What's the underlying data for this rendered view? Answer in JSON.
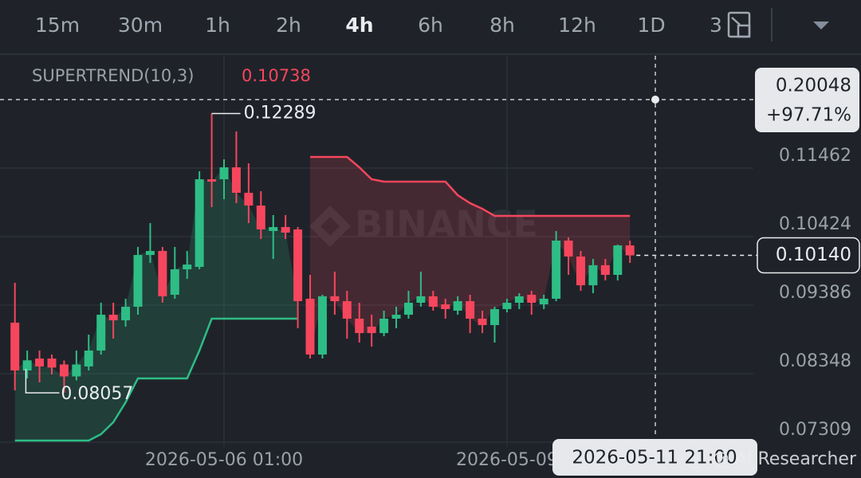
{
  "toolbar": {
    "intervals": [
      "15m",
      "30m",
      "1h",
      "2h",
      "4h",
      "6h",
      "8h",
      "12h",
      "1D",
      "3"
    ],
    "active_index": 4
  },
  "chart_data": {
    "type": "candlestick",
    "watermark": "BINANCE",
    "credit": "@ AI Researcher",
    "categories": [
      null,
      null,
      null,
      null,
      null,
      null,
      null,
      null,
      null,
      null,
      null,
      null,
      null,
      null,
      null,
      null,
      null,
      "2026-05-06 01:00",
      null,
      null,
      null,
      null,
      null,
      null,
      null,
      null,
      null,
      null,
      null,
      null,
      null,
      null,
      null,
      null,
      null,
      null,
      null,
      null,
      null,
      null,
      "2026-05-09",
      null,
      null,
      null,
      null,
      null,
      null,
      null,
      null,
      null,
      null
    ],
    "open": [
      0.0912,
      0.08396,
      0.08577,
      0.08577,
      0.08487,
      0.08306,
      0.08457,
      0.08698,
      0.09241,
      0.09156,
      0.09362,
      0.10146,
      0.10207,
      0.09543,
      0.09929,
      0.09965,
      0.11293,
      0.11293,
      0.11474,
      0.11088,
      0.10895,
      0.10509,
      0.10569,
      0.10533,
      0.09483,
      0.08638,
      0.0952,
      0.09446,
      0.09181,
      0.0906,
      0.08963,
      0.09181,
      0.09241,
      0.09422,
      0.0952,
      0.09398,
      0.09302,
      0.09446,
      0.09181,
      0.09084,
      0.09326,
      0.09422,
      0.09543,
      0.09398,
      0.09483,
      0.10364,
      0.10122,
      0.09687,
      0.09991,
      0.09845,
      0.10291
    ],
    "high": [
      0.09724,
      0.08698,
      0.08698,
      0.08638,
      0.08547,
      0.08698,
      0.08939,
      0.09422,
      0.09422,
      0.09483,
      0.10267,
      0.10629,
      0.10267,
      0.10267,
      0.10207,
      0.11414,
      0.12289,
      0.11595,
      0.12017,
      0.11535,
      0.11112,
      0.1075,
      0.1075,
      0.10569,
      0.09845,
      0.09543,
      0.09893,
      0.09603,
      0.09422,
      0.09241,
      0.09302,
      0.09362,
      0.09603,
      0.09893,
      0.09603,
      0.09483,
      0.0952,
      0.09543,
      0.09302,
      0.09362,
      0.09483,
      0.09567,
      0.09603,
      0.09543,
      0.10509,
      0.10412,
      0.10207,
      0.10086,
      0.10086,
      0.10303,
      0.10364
    ],
    "low": [
      0.08095,
      0.08276,
      0.08215,
      0.08336,
      0.08057,
      0.08245,
      0.08396,
      0.08638,
      0.08879,
      0.0906,
      0.09241,
      0.10026,
      0.09422,
      0.09483,
      0.09784,
      0.09929,
      0.10871,
      0.10991,
      0.10931,
      0.10629,
      0.10388,
      0.10086,
      0.10388,
      0.09036,
      0.08577,
      0.08577,
      0.09241,
      0.08879,
      0.08819,
      0.08758,
      0.08915,
      0.09036,
      0.09181,
      0.09362,
      0.09302,
      0.09181,
      0.09241,
      0.08963,
      0.08963,
      0.08819,
      0.09278,
      0.09326,
      0.09241,
      0.09326,
      0.09446,
      0.09845,
      0.09603,
      0.09567,
      0.0976,
      0.0976,
      0.10026
    ],
    "close": [
      0.08396,
      0.0855,
      0.08457,
      0.0844,
      0.08306,
      0.08487,
      0.08698,
      0.09241,
      0.09156,
      0.09362,
      0.10146,
      0.10207,
      0.0952,
      0.09929,
      0.10001,
      0.11293,
      0.11257,
      0.11474,
      0.11088,
      0.10895,
      0.10533,
      0.10569,
      0.10485,
      0.09446,
      0.08638,
      0.0952,
      0.09446,
      0.09181,
      0.08963,
      0.08963,
      0.09181,
      0.09241,
      0.09422,
      0.0952,
      0.09362,
      0.09326,
      0.09446,
      0.09181,
      0.09084,
      0.09326,
      0.09422,
      0.0952,
      0.09422,
      0.09483,
      0.10364,
      0.10122,
      0.09687,
      0.09991,
      0.09845,
      0.10291,
      0.1014
    ],
    "up_color": "#2ebd85",
    "down_color": "#f6465d",
    "supertrend": {
      "name": "SUPERTREND(10,3)",
      "up": [
        0.07334,
        0.07334,
        0.07334,
        0.07334,
        0.07334,
        0.07334,
        0.07334,
        0.07431,
        0.07612,
        0.07913,
        0.08276,
        0.08276,
        0.08276,
        0.08276,
        0.08276,
        0.08698,
        0.09181,
        0.09181,
        0.09181,
        0.09181,
        0.09181,
        0.09181,
        0.09181,
        0.09181,
        null,
        null,
        null,
        null,
        null,
        null,
        null,
        null,
        null,
        null,
        null,
        null,
        null,
        null,
        null,
        null,
        null,
        null,
        null,
        null,
        null,
        null,
        null,
        null,
        null,
        null,
        null
      ],
      "down": [
        null,
        null,
        null,
        null,
        null,
        null,
        null,
        null,
        null,
        null,
        null,
        null,
        null,
        null,
        null,
        null,
        null,
        null,
        null,
        null,
        null,
        null,
        null,
        null,
        0.11631,
        0.11631,
        0.11631,
        0.11631,
        0.11474,
        0.11293,
        0.11257,
        0.11257,
        0.11257,
        0.11257,
        0.11257,
        0.11257,
        0.11052,
        0.10931,
        0.10846,
        0.10738,
        0.10738,
        0.10738,
        0.10738,
        0.10738,
        0.10738,
        0.10738,
        0.10738,
        0.10738,
        0.10738,
        0.10738,
        0.10738
      ]
    },
    "price_line": {
      "value": 0.1014,
      "label": "0.10140"
    },
    "crosshair": {
      "price": "0.20048",
      "change": "+97.71%",
      "time": "2026-05-11 21:00"
    },
    "ylim": [
      0.0725,
      0.13164
    ],
    "yticks": [
      0.07309,
      0.08348,
      0.09386,
      0.10424,
      0.11462
    ],
    "grid": true
  }
}
